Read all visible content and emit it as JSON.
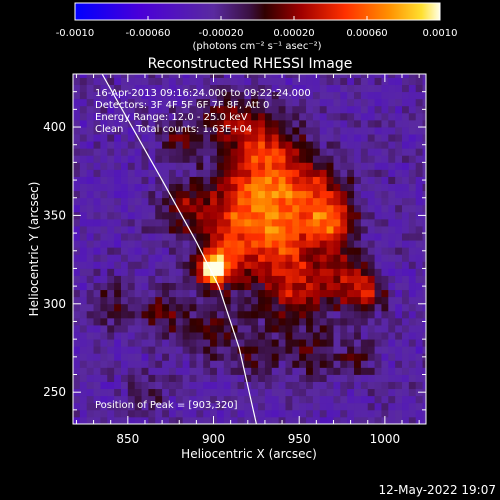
{
  "chart_data": {
    "type": "heatmap",
    "title": "Reconstructed RHESSI Image",
    "xlabel": "Heliocentric X (arcsec)",
    "ylabel": "Heliocentric Y (arcsec)",
    "xlim": [
      818,
      1024
    ],
    "ylim": [
      232,
      430
    ],
    "x_ticks": [
      "850",
      "900",
      "950",
      "1000"
    ],
    "y_ticks": [
      "250",
      "300",
      "350",
      "400"
    ],
    "x_tick_values": [
      850,
      900,
      950,
      1000
    ],
    "y_tick_values": [
      250,
      300,
      350,
      400
    ],
    "colorbar": {
      "ticks": [
        "-0.0010",
        "-0.00060",
        "-0.00020",
        "0.00020",
        "0.00060",
        "0.0010"
      ],
      "tick_values": [
        -0.001,
        -0.0006,
        -0.0002,
        0.0002,
        0.0006,
        0.001
      ],
      "range": [
        -0.001,
        0.001
      ],
      "units_label": "(photons cm⁻² s⁻¹ asec⁻²)"
    },
    "annotations": {
      "time": "16-Apr-2013 09:16:24.000 to 09:22:24.000",
      "detectors": "Detectors: 3F 4F 5F 6F 7F 8F, Att 0",
      "energy": "Energy Range: 12.0 - 25.0 keV",
      "clean": "Clean    Total counts: 1.63E+04",
      "peak": "Position of Peak = [903,320]"
    },
    "peak": [
      903,
      320
    ],
    "limb_curve": {
      "x": [
        835,
        870,
        890,
        903,
        915,
        925
      ],
      "y": [
        430,
        370,
        335,
        310,
        275,
        232
      ]
    },
    "blobs": [
      {
        "x": 900,
        "y": 320,
        "amp": 0.0012,
        "s": 5
      },
      {
        "x": 903,
        "y": 322,
        "amp": 0.0005,
        "s": 10
      },
      {
        "x": 915,
        "y": 350,
        "amp": 0.00065,
        "s": 18
      },
      {
        "x": 940,
        "y": 335,
        "amp": 0.00055,
        "s": 16
      },
      {
        "x": 935,
        "y": 375,
        "amp": 0.00055,
        "s": 16
      },
      {
        "x": 960,
        "y": 360,
        "amp": 0.0005,
        "s": 14
      },
      {
        "x": 970,
        "y": 345,
        "amp": 0.0006,
        "s": 9
      },
      {
        "x": 975,
        "y": 315,
        "amp": 0.0005,
        "s": 11
      },
      {
        "x": 990,
        "y": 305,
        "amp": 0.0005,
        "s": 7
      },
      {
        "x": 945,
        "y": 305,
        "amp": 0.00045,
        "s": 14
      },
      {
        "x": 925,
        "y": 395,
        "amp": 0.0004,
        "s": 13
      },
      {
        "x": 880,
        "y": 395,
        "amp": 0.00035,
        "s": 8
      },
      {
        "x": 882,
        "y": 355,
        "amp": 0.00035,
        "s": 10
      },
      {
        "x": 905,
        "y": 405,
        "amp": 0.0003,
        "s": 10
      },
      {
        "x": 870,
        "y": 295,
        "amp": 0.00035,
        "s": 10
      },
      {
        "x": 900,
        "y": 285,
        "amp": 0.0003,
        "s": 12
      },
      {
        "x": 925,
        "y": 270,
        "amp": 0.00025,
        "s": 10
      },
      {
        "x": 960,
        "y": 270,
        "amp": 0.0003,
        "s": 10
      },
      {
        "x": 840,
        "y": 300,
        "amp": 0.0003,
        "s": 8
      },
      {
        "x": 860,
        "y": 250,
        "amp": 0.0002,
        "s": 8
      },
      {
        "x": 985,
        "y": 270,
        "amp": 0.00025,
        "s": 8
      }
    ]
  },
  "footer": {
    "timestamp": "12-May-2022 19:07"
  }
}
